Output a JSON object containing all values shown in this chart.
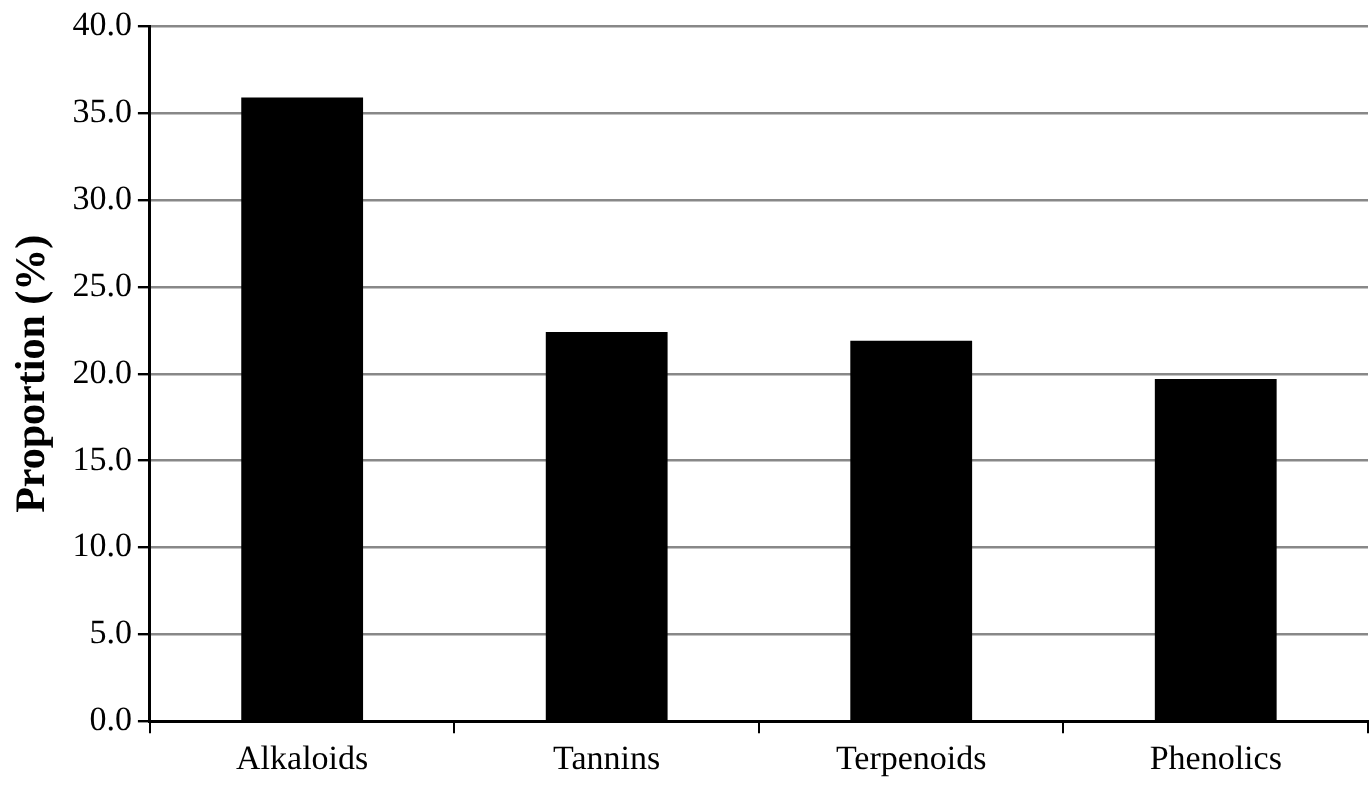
{
  "chart_data": {
    "type": "bar",
    "ylabel": "Proportion (%)",
    "categories": [
      "Alkaloids",
      "Tannins",
      "Terpenoids",
      "Phenolics"
    ],
    "values": [
      35.9,
      22.4,
      21.9,
      19.7
    ],
    "color": "#000000",
    "ylim": [
      0,
      40
    ],
    "yticks": [
      {
        "value": 0,
        "label": "0.0"
      },
      {
        "value": 5,
        "label": "5.0"
      },
      {
        "value": 10,
        "label": "10.0"
      },
      {
        "value": 15,
        "label": "15.0"
      },
      {
        "value": 20,
        "label": "20.0"
      },
      {
        "value": 25,
        "label": "25.0"
      },
      {
        "value": 30,
        "label": "30.0"
      },
      {
        "value": 35,
        "label": "35.0"
      },
      {
        "value": 40,
        "label": "40.0"
      }
    ],
    "grid": "y",
    "legend": false
  }
}
